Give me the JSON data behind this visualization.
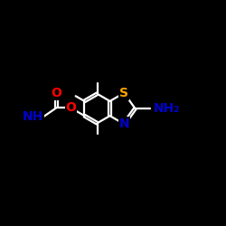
{
  "background_color": "#000000",
  "bond_color": "#ffffff",
  "atom_colors": {
    "O": "#ff0000",
    "N": "#0000cd",
    "NH": "#0000cd",
    "S": "#ffa500",
    "NH2": "#0000cd",
    "C": "#ffffff"
  },
  "font_size_atoms": 10,
  "fig_size": [
    2.5,
    2.5
  ],
  "dpi": 100
}
